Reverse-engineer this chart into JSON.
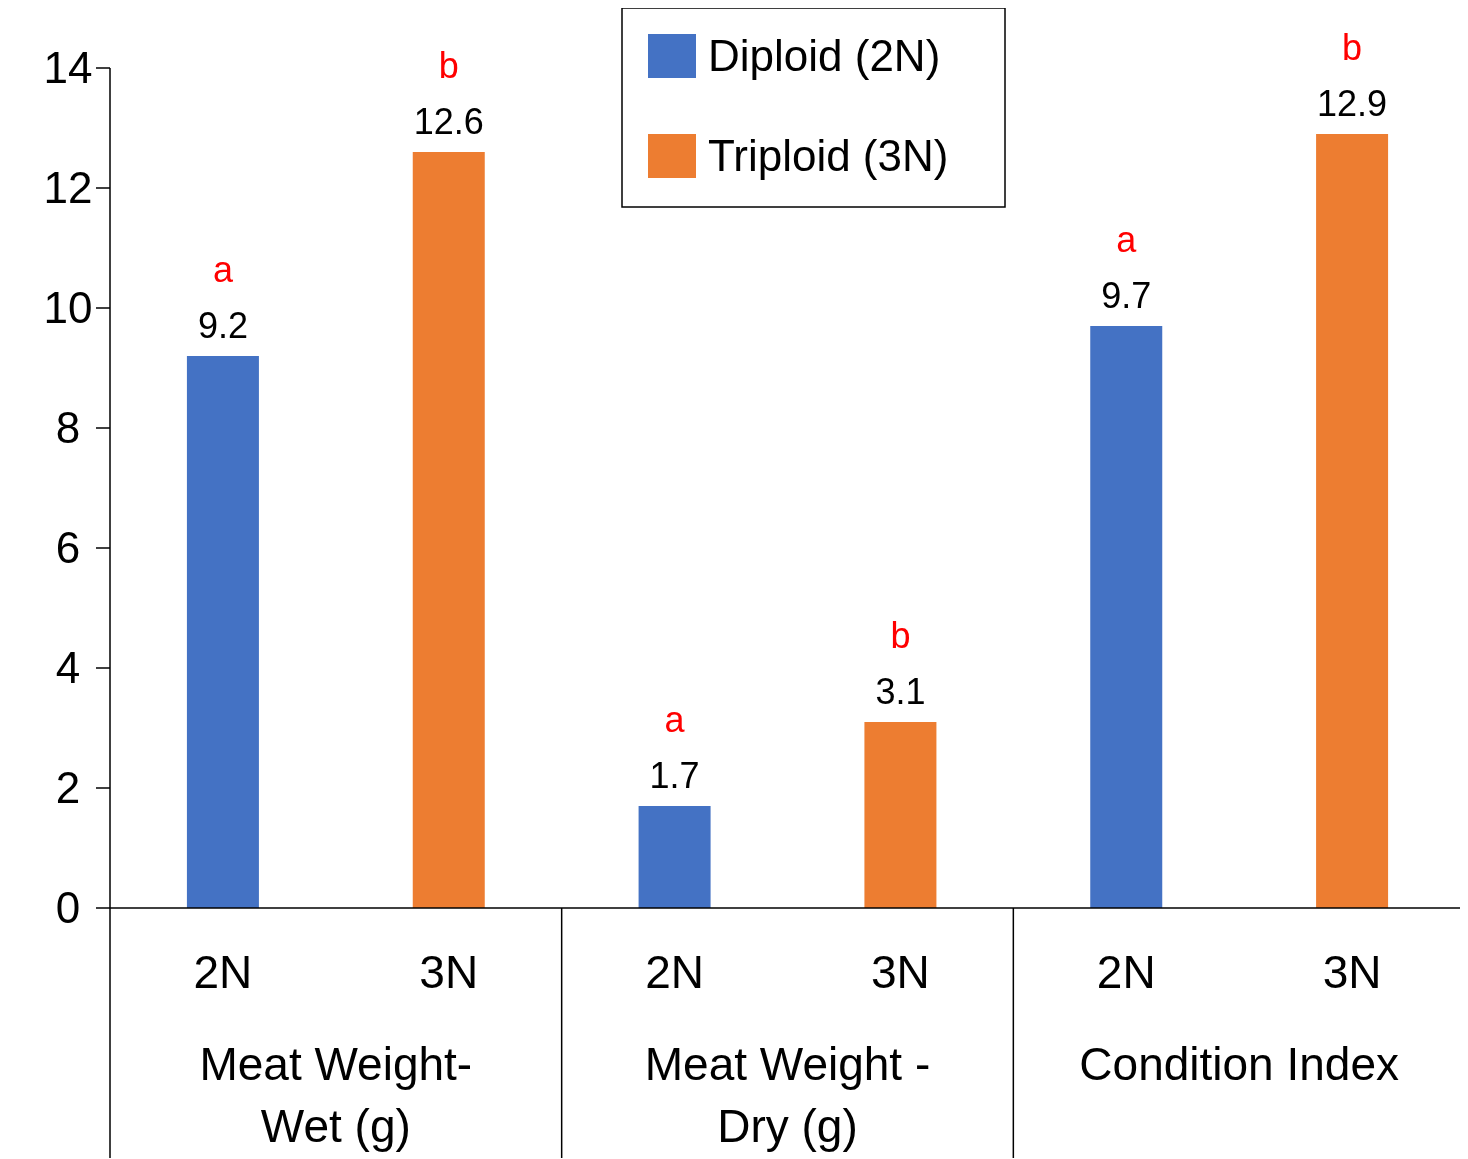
{
  "chart_data": {
    "type": "bar",
    "categories": [
      "2N",
      "3N",
      "2N",
      "3N",
      "2N",
      "3N"
    ],
    "series": [
      {
        "name": "Diploid (2N)",
        "color": "#4472c4",
        "values": [
          9.2,
          null,
          1.7,
          null,
          9.7,
          null
        ]
      },
      {
        "name": "Triploid (3N)",
        "color": "#ed7d31",
        "values": [
          null,
          12.6,
          null,
          3.1,
          null,
          12.9
        ]
      }
    ],
    "ylim": [
      0,
      14
    ],
    "yticks": [
      0,
      2,
      4,
      6,
      8,
      10,
      12,
      14
    ],
    "data_labels": true,
    "legend": "top",
    "grid": false,
    "annotations": [
      "Meat Weight- Wet (g)",
      "Meat Weight - Dry (g)",
      "Condition Index",
      "a",
      "b",
      "a",
      "b",
      "a",
      "b"
    ]
  }
}
